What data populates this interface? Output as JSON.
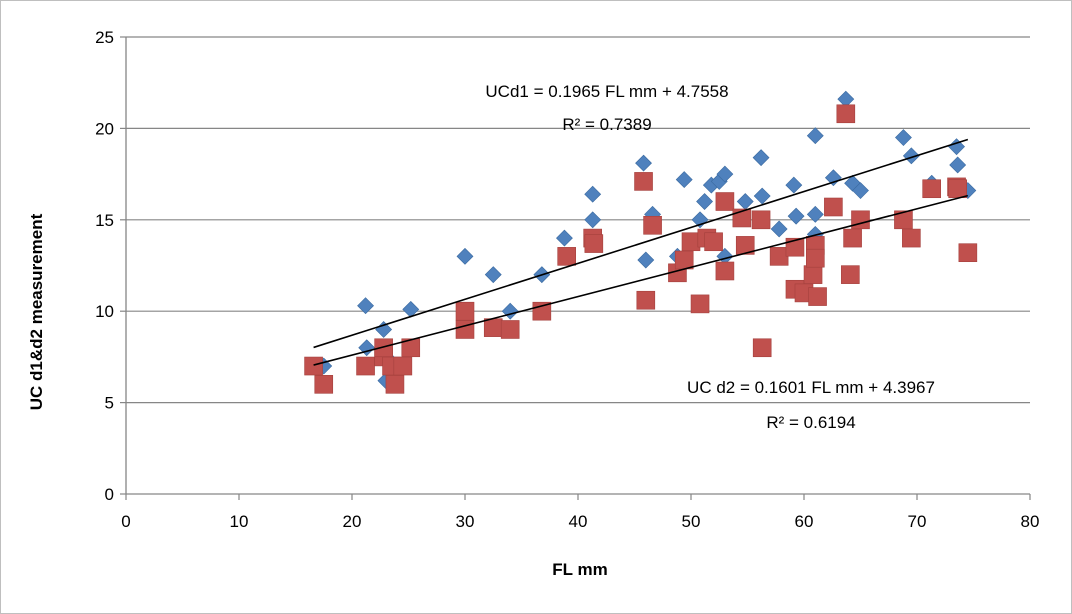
{
  "chart_data": {
    "type": "scatter",
    "title": "",
    "xlabel": "FL mm",
    "ylabel": "UC d1&d2 measurement",
    "xlim": [
      0,
      80
    ],
    "ylim": [
      0,
      25
    ],
    "x_ticks": [
      "0",
      "10",
      "20",
      "30",
      "40",
      "50",
      "60",
      "70",
      "80"
    ],
    "y_ticks": [
      "0",
      "5",
      "10",
      "15",
      "20",
      "25"
    ],
    "grid": "horizontal",
    "colors": {
      "d1": "#4f81bd",
      "d2": "#c0504d",
      "trend": "#000000",
      "grid": "#868686"
    },
    "series": [
      {
        "marker": "diamond",
        "color": "#4f81bd",
        "points": [
          [
            17.5,
            7
          ],
          [
            21.2,
            10.3
          ],
          [
            21.3,
            8
          ],
          [
            22.8,
            9
          ],
          [
            23,
            6.2
          ],
          [
            23.5,
            7.2
          ],
          [
            25.2,
            10.1
          ],
          [
            30,
            13
          ],
          [
            32.5,
            12
          ],
          [
            34,
            10
          ],
          [
            36.8,
            12
          ],
          [
            38.8,
            14
          ],
          [
            41.3,
            16.4
          ],
          [
            41.3,
            15
          ],
          [
            45.8,
            18.1
          ],
          [
            46,
            12.8
          ],
          [
            46.6,
            15.3
          ],
          [
            48.8,
            13
          ],
          [
            49.4,
            17.2
          ],
          [
            50.8,
            15
          ],
          [
            51.2,
            16
          ],
          [
            51.8,
            16.9
          ],
          [
            52.5,
            17.1
          ],
          [
            53,
            17.5
          ],
          [
            53,
            13
          ],
          [
            54.8,
            16
          ],
          [
            56.2,
            18.4
          ],
          [
            56.3,
            16.3
          ],
          [
            57.8,
            14.5
          ],
          [
            59.1,
            16.9
          ],
          [
            59.3,
            15.2
          ],
          [
            61,
            19.6
          ],
          [
            61,
            15.3
          ],
          [
            61,
            14.2
          ],
          [
            62.6,
            17.3
          ],
          [
            63.7,
            21.6
          ],
          [
            64.3,
            17
          ],
          [
            65,
            16.6
          ],
          [
            68.8,
            19.5
          ],
          [
            69.5,
            18.5
          ],
          [
            71.3,
            17
          ],
          [
            73.5,
            19
          ],
          [
            73.6,
            18
          ],
          [
            74.5,
            16.6
          ]
        ]
      },
      {
        "marker": "square",
        "color": "#c0504d",
        "points": [
          [
            16.6,
            7
          ],
          [
            17.5,
            6
          ],
          [
            21.2,
            7
          ],
          [
            22.8,
            7.5
          ],
          [
            22.8,
            8
          ],
          [
            23.5,
            7
          ],
          [
            23.8,
            6
          ],
          [
            24.5,
            7
          ],
          [
            25.2,
            8
          ],
          [
            30,
            10
          ],
          [
            30,
            9
          ],
          [
            32.5,
            9.1
          ],
          [
            34,
            9
          ],
          [
            36.8,
            10
          ],
          [
            39,
            13
          ],
          [
            41.3,
            14
          ],
          [
            41.4,
            13.7
          ],
          [
            45.8,
            17.1
          ],
          [
            46,
            10.6
          ],
          [
            46.6,
            14.7
          ],
          [
            48.8,
            12.1
          ],
          [
            49.4,
            12.8
          ],
          [
            50,
            13.8
          ],
          [
            50.8,
            10.4
          ],
          [
            51.4,
            14
          ],
          [
            52,
            13.8
          ],
          [
            53,
            16
          ],
          [
            53,
            12.2
          ],
          [
            54.5,
            15.1
          ],
          [
            54.8,
            13.6
          ],
          [
            56.2,
            15
          ],
          [
            56.3,
            8
          ],
          [
            57.8,
            13
          ],
          [
            59.2,
            13.5
          ],
          [
            59.2,
            11.2
          ],
          [
            60,
            11
          ],
          [
            60.8,
            12
          ],
          [
            61,
            13.6
          ],
          [
            61,
            12.9
          ],
          [
            61.2,
            10.8
          ],
          [
            62.6,
            15.7
          ],
          [
            63.7,
            20.8
          ],
          [
            64.1,
            12
          ],
          [
            64.3,
            14
          ],
          [
            65,
            15
          ],
          [
            68.8,
            15
          ],
          [
            69.5,
            14
          ],
          [
            71.3,
            16.7
          ],
          [
            73.5,
            16.8
          ],
          [
            73.6,
            16.7
          ],
          [
            74.5,
            13.2
          ]
        ]
      }
    ],
    "trendlines": [
      {
        "slope": 0.1965,
        "intercept": 4.7558,
        "x_range": [
          16.6,
          74.5
        ]
      },
      {
        "slope": 0.1601,
        "intercept": 4.3967,
        "x_range": [
          16.6,
          74.5
        ]
      }
    ],
    "annotations": [
      {
        "line1": "UCd1 = 0.1965 FL mm + 4.7558",
        "line2": "R² = 0.7389"
      },
      {
        "line1": "UC d2 = 0.1601 FL mm + 4.3967",
        "line2": "R² = 0.6194"
      }
    ]
  }
}
